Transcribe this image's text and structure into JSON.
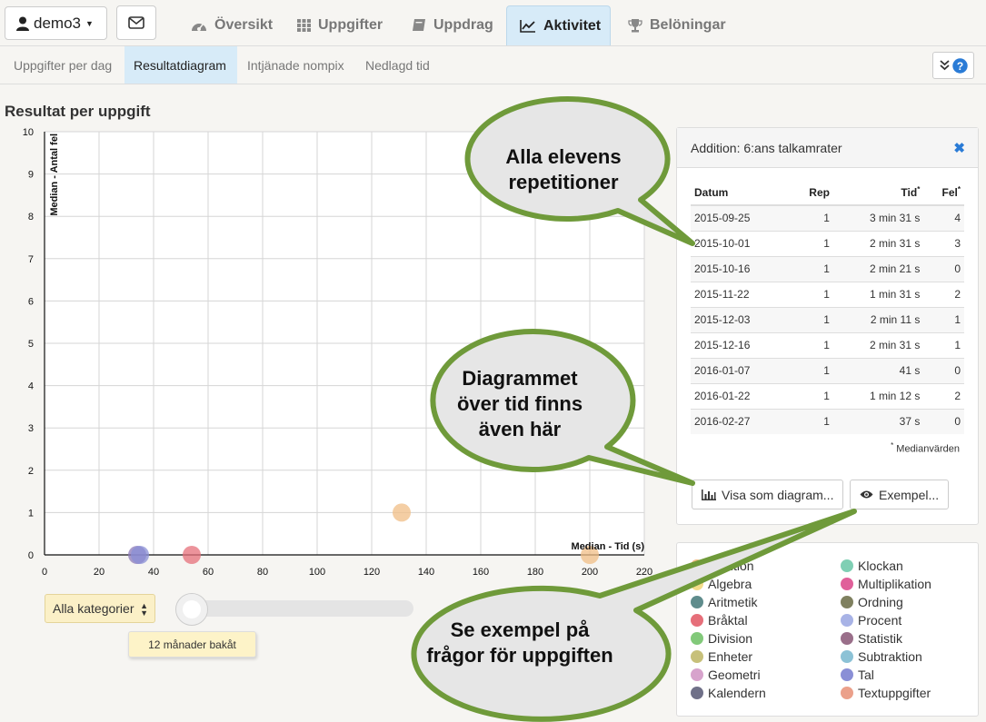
{
  "user": {
    "name": "demo3"
  },
  "nav_tabs": [
    {
      "label": "Översikt",
      "icon": "dashboard-icon",
      "active": false
    },
    {
      "label": "Uppgifter",
      "icon": "grid-icon",
      "active": false
    },
    {
      "label": "Uppdrag",
      "icon": "book-icon",
      "active": false
    },
    {
      "label": "Aktivitet",
      "icon": "line-chart-icon",
      "active": true
    },
    {
      "label": "Belöningar",
      "icon": "trophy-icon",
      "active": false
    }
  ],
  "sub_tabs": [
    {
      "label": "Uppgifter per dag",
      "active": false
    },
    {
      "label": "Resultatdiagram",
      "active": true
    },
    {
      "label": "Intjänade nompix",
      "active": false
    },
    {
      "label": "Nedlagd tid",
      "active": false
    }
  ],
  "section_title": "Resultat per uppgift",
  "chart_data": {
    "type": "scatter",
    "xlabel": "Median - Tid (s)",
    "ylabel": "Median - Antal fel",
    "xlim": [
      0,
      220
    ],
    "ylim": [
      0,
      10
    ],
    "x_ticks": [
      "0",
      "20",
      "40",
      "60",
      "80",
      "100",
      "120",
      "140",
      "160",
      "180",
      "200",
      "220"
    ],
    "y_ticks": [
      "0",
      "1",
      "2",
      "3",
      "4",
      "5",
      "6",
      "7",
      "8",
      "9",
      "10"
    ],
    "grid": true,
    "points": [
      {
        "x": 34,
        "y": 0,
        "color": "#8c7ab8"
      },
      {
        "x": 35,
        "y": 0,
        "color": "#8a8fd6"
      },
      {
        "x": 54,
        "y": 0,
        "color": "#e66f7a"
      },
      {
        "x": 131,
        "y": 1,
        "color": "#f0bd85"
      },
      {
        "x": 200,
        "y": 0,
        "color": "#f0bd85"
      }
    ]
  },
  "controls": {
    "category_select": "Alla kategorier",
    "slider_label": "12 månader bakåt"
  },
  "panel": {
    "title": "Addition: 6:ans talkamrater",
    "columns": {
      "date": "Datum",
      "rep": "Rep",
      "time": "Tid",
      "errors": "Fel"
    },
    "rows": [
      {
        "date": "2015-09-25",
        "rep": "1",
        "time": "3 min 31 s",
        "errors": "4"
      },
      {
        "date": "2015-10-01",
        "rep": "1",
        "time": "2 min 31 s",
        "errors": "3"
      },
      {
        "date": "2015-10-16",
        "rep": "1",
        "time": "2 min 21 s",
        "errors": "0"
      },
      {
        "date": "2015-11-22",
        "rep": "1",
        "time": "1 min 31 s",
        "errors": "2"
      },
      {
        "date": "2015-12-03",
        "rep": "1",
        "time": "2 min 11 s",
        "errors": "1"
      },
      {
        "date": "2015-12-16",
        "rep": "1",
        "time": "2 min 31 s",
        "errors": "1"
      },
      {
        "date": "2016-01-07",
        "rep": "1",
        "time": "41 s",
        "errors": "0"
      },
      {
        "date": "2016-01-22",
        "rep": "1",
        "time": "1 min 12 s",
        "errors": "2"
      },
      {
        "date": "2016-02-27",
        "rep": "1",
        "time": "37 s",
        "errors": "0"
      }
    ],
    "median_note": "Medianvärden",
    "chart_button": "Visa som diagram...",
    "example_button": "Exempel..."
  },
  "legend": [
    {
      "label": "Addition",
      "color": "#f0bd85"
    },
    {
      "label": "Klockan",
      "color": "#7fcfb4"
    },
    {
      "label": "Algebra",
      "color": "#f3dc8a"
    },
    {
      "label": "Multiplikation",
      "color": "#e0609a"
    },
    {
      "label": "Aritmetik",
      "color": "#5f8c8c"
    },
    {
      "label": "Ordning",
      "color": "#7f805f"
    },
    {
      "label": "Bråktal",
      "color": "#e66f7a"
    },
    {
      "label": "Procent",
      "color": "#a8b3e6"
    },
    {
      "label": "Division",
      "color": "#82c97a"
    },
    {
      "label": "Statistik",
      "color": "#9a6f8a"
    },
    {
      "label": "Enheter",
      "color": "#c7c07a"
    },
    {
      "label": "Subtraktion",
      "color": "#8cc2d6"
    },
    {
      "label": "Geometri",
      "color": "#d7a3cc"
    },
    {
      "label": "Tal",
      "color": "#8a8fd6"
    },
    {
      "label": "Kalendern",
      "color": "#6f7088"
    },
    {
      "label": "Textuppgifter",
      "color": "#eba08a"
    }
  ],
  "callouts": [
    {
      "lines": [
        "Alla elevens",
        "repetitioner"
      ]
    },
    {
      "lines": [
        "Diagrammet",
        "över tid finns",
        "även här"
      ]
    },
    {
      "lines": [
        "Se exempel på",
        "frågor för uppgiften"
      ]
    }
  ],
  "colors": {
    "accent": "#2a7bd6",
    "active_tab": "#d7ebf8",
    "callout_fill": "#e6e6e6",
    "callout_stroke": "#6f9a3a"
  }
}
